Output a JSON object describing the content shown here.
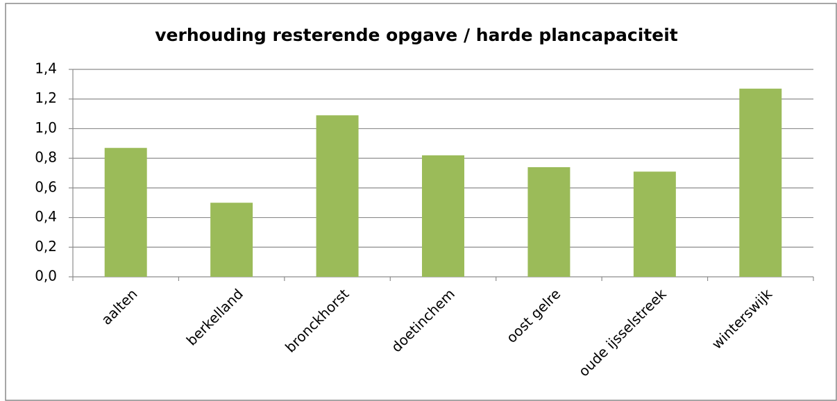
{
  "chart_data": {
    "type": "bar",
    "title": "verhouding resterende opgave / harde plancapaciteit",
    "categories": [
      "aalten",
      "berkelland",
      "bronckhorst",
      "doetinchem",
      "oost gelre",
      "oude ijsselstreek",
      "winterswijk"
    ],
    "values": [
      0.87,
      0.5,
      1.09,
      0.82,
      0.74,
      0.71,
      1.27
    ],
    "color": "#9bbb59",
    "ylim": [
      0,
      1.4
    ],
    "yticks": [
      {
        "value": 0,
        "label": "0,0"
      },
      {
        "value": 0.2,
        "label": "0,2"
      },
      {
        "value": 0.4,
        "label": "0,4"
      },
      {
        "value": 0.6,
        "label": "0,6"
      },
      {
        "value": 0.8,
        "label": "0,8"
      },
      {
        "value": 1.0,
        "label": "1,0"
      },
      {
        "value": 1.2,
        "label": "1,2"
      },
      {
        "value": 1.4,
        "label": "1,4"
      }
    ],
    "grid": true
  }
}
